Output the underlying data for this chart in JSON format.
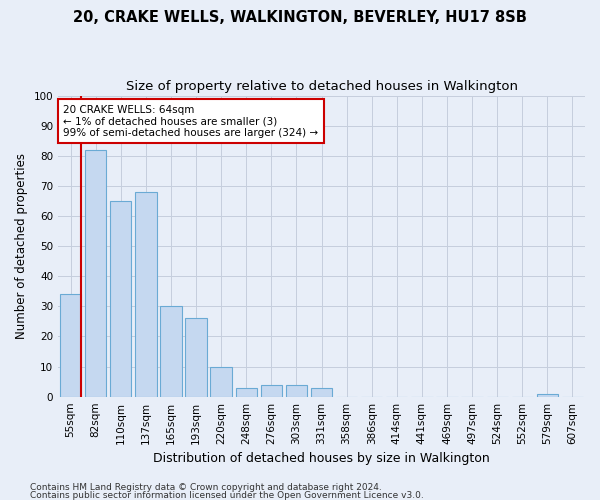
{
  "title": "20, CRAKE WELLS, WALKINGTON, BEVERLEY, HU17 8SB",
  "subtitle": "Size of property relative to detached houses in Walkington",
  "xlabel": "Distribution of detached houses by size in Walkington",
  "ylabel": "Number of detached properties",
  "categories": [
    "55sqm",
    "82sqm",
    "110sqm",
    "137sqm",
    "165sqm",
    "193sqm",
    "220sqm",
    "248sqm",
    "276sqm",
    "303sqm",
    "331sqm",
    "358sqm",
    "386sqm",
    "414sqm",
    "441sqm",
    "469sqm",
    "497sqm",
    "524sqm",
    "552sqm",
    "579sqm",
    "607sqm"
  ],
  "values": [
    34,
    82,
    65,
    68,
    30,
    26,
    10,
    3,
    4,
    4,
    3,
    0,
    0,
    0,
    0,
    0,
    0,
    0,
    0,
    1,
    0
  ],
  "bar_color": "#c5d8f0",
  "bar_edge_color": "#6aaad4",
  "ylim": [
    0,
    100
  ],
  "yticks": [
    0,
    10,
    20,
    30,
    40,
    50,
    60,
    70,
    80,
    90,
    100
  ],
  "annotation_text": "20 CRAKE WELLS: 64sqm\n← 1% of detached houses are smaller (3)\n99% of semi-detached houses are larger (324) →",
  "annotation_box_color": "#ffffff",
  "annotation_box_edge": "#cc0000",
  "marker_line_color": "#cc0000",
  "footnote1": "Contains HM Land Registry data © Crown copyright and database right 2024.",
  "footnote2": "Contains public sector information licensed under the Open Government Licence v3.0.",
  "background_color": "#e8eef8",
  "grid_color": "#c5cedd",
  "title_fontsize": 10.5,
  "subtitle_fontsize": 9.5,
  "xlabel_fontsize": 9,
  "ylabel_fontsize": 8.5,
  "tick_fontsize": 7.5,
  "annotation_fontsize": 7.5,
  "footnote_fontsize": 6.5
}
